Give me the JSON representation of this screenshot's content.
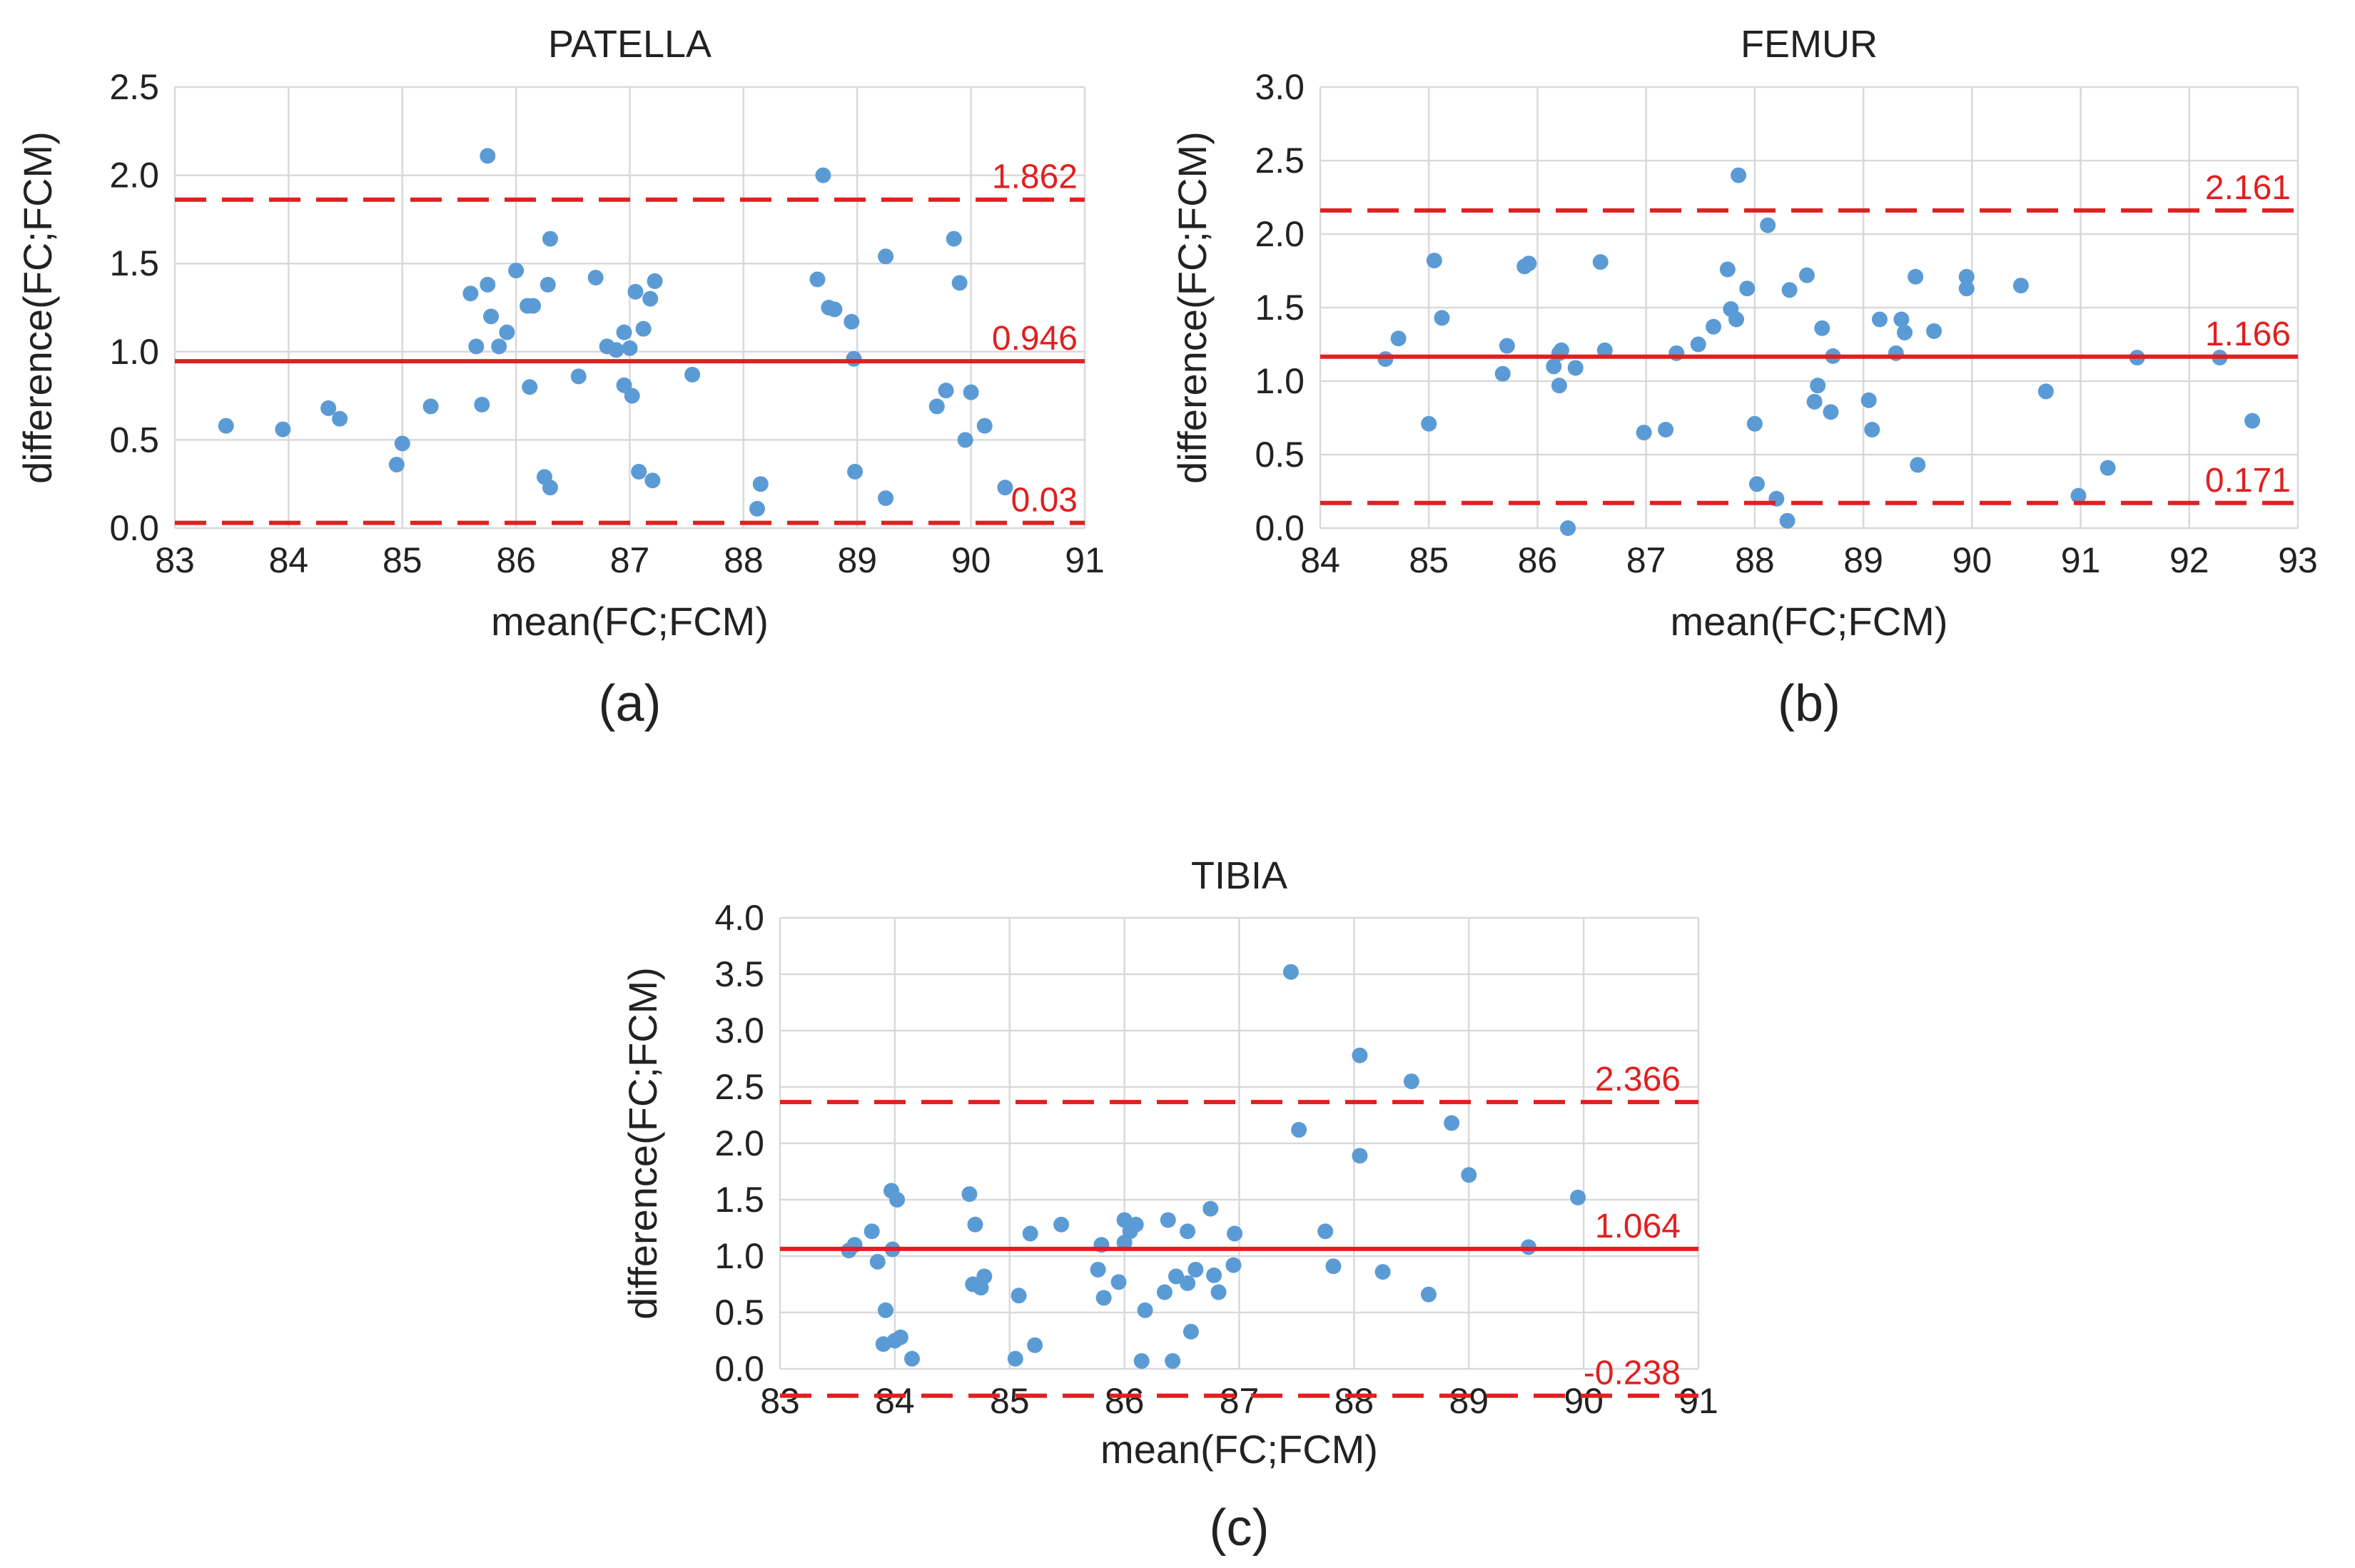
{
  "chart_data": [
    {
      "type": "scatter",
      "title": "PATELLA",
      "panel_label": "(a)",
      "xlabel": "mean(FC;FCM)",
      "ylabel": "difference(FC;FCM)",
      "xlim": [
        83,
        91
      ],
      "ylim": [
        0,
        2.5
      ],
      "xticks": [
        "83",
        "84",
        "85",
        "86",
        "87",
        "88",
        "89",
        "90",
        "91"
      ],
      "yticks": [
        "0.0",
        "0.5",
        "1.0",
        "1.5",
        "2.0",
        "2.5"
      ],
      "grid": true,
      "reference_lines": [
        {
          "value": 1.862,
          "label": "1.862",
          "style": "dashed",
          "color": "#e02020"
        },
        {
          "value": 0.946,
          "label": "0.946",
          "style": "solid",
          "color": "#e02020"
        },
        {
          "value": 0.03,
          "label": "0.03",
          "style": "dashed",
          "color": "#e02020"
        }
      ],
      "points": [
        [
          83.45,
          0.58
        ],
        [
          83.95,
          0.56
        ],
        [
          84.35,
          0.68
        ],
        [
          84.45,
          0.62
        ],
        [
          84.95,
          0.36
        ],
        [
          85.0,
          0.48
        ],
        [
          85.25,
          0.69
        ],
        [
          85.6,
          1.33
        ],
        [
          85.65,
          1.03
        ],
        [
          85.7,
          0.7
        ],
        [
          85.75,
          1.38
        ],
        [
          85.75,
          2.11
        ],
        [
          85.78,
          1.2
        ],
        [
          85.85,
          1.03
        ],
        [
          85.92,
          1.11
        ],
        [
          86.0,
          1.46
        ],
        [
          86.1,
          1.26
        ],
        [
          86.12,
          0.8
        ],
        [
          86.15,
          1.26
        ],
        [
          86.25,
          0.29
        ],
        [
          86.28,
          1.38
        ],
        [
          86.3,
          0.23
        ],
        [
          86.3,
          1.64
        ],
        [
          86.55,
          0.86
        ],
        [
          86.7,
          1.42
        ],
        [
          86.8,
          1.03
        ],
        [
          86.88,
          1.01
        ],
        [
          86.95,
          0.81
        ],
        [
          86.95,
          1.11
        ],
        [
          87.0,
          1.02
        ],
        [
          87.02,
          0.75
        ],
        [
          87.05,
          1.34
        ],
        [
          87.08,
          0.32
        ],
        [
          87.12,
          1.13
        ],
        [
          87.18,
          1.3
        ],
        [
          87.2,
          0.27
        ],
        [
          87.22,
          1.4
        ],
        [
          87.55,
          0.87
        ],
        [
          88.12,
          0.11
        ],
        [
          88.15,
          0.25
        ],
        [
          88.65,
          1.41
        ],
        [
          88.7,
          2.0
        ],
        [
          88.75,
          1.25
        ],
        [
          88.8,
          1.24
        ],
        [
          88.95,
          1.17
        ],
        [
          88.97,
          0.96
        ],
        [
          88.98,
          0.32
        ],
        [
          89.25,
          0.17
        ],
        [
          89.25,
          1.54
        ],
        [
          89.7,
          0.69
        ],
        [
          89.78,
          0.78
        ],
        [
          89.85,
          1.64
        ],
        [
          89.9,
          1.39
        ],
        [
          89.95,
          0.5
        ],
        [
          90.0,
          0.77
        ],
        [
          90.12,
          0.58
        ],
        [
          90.3,
          0.23
        ]
      ]
    },
    {
      "type": "scatter",
      "title": "FEMUR",
      "panel_label": "(b)",
      "xlabel": "mean(FC;FCM)",
      "ylabel": "difference(FC;FCM)",
      "xlim": [
        84,
        93
      ],
      "ylim": [
        0,
        3.0
      ],
      "xticks": [
        "84",
        "85",
        "86",
        "87",
        "88",
        "89",
        "90",
        "91",
        "92",
        "93"
      ],
      "yticks": [
        "0.0",
        "0.5",
        "1.0",
        "1.5",
        "2.0",
        "2.5",
        "3.0"
      ],
      "grid": true,
      "reference_lines": [
        {
          "value": 2.161,
          "label": "2.161",
          "style": "dashed",
          "color": "#e02020"
        },
        {
          "value": 1.166,
          "label": "1.166",
          "style": "solid",
          "color": "#e02020"
        },
        {
          "value": 0.171,
          "label": "0.171",
          "style": "dashed",
          "color": "#e02020"
        }
      ],
      "points": [
        [
          84.6,
          1.15
        ],
        [
          84.72,
          1.29
        ],
        [
          85.0,
          0.71
        ],
        [
          85.05,
          1.82
        ],
        [
          85.12,
          1.43
        ],
        [
          85.68,
          1.05
        ],
        [
          85.72,
          1.24
        ],
        [
          85.88,
          1.78
        ],
        [
          85.92,
          1.8
        ],
        [
          86.15,
          1.1
        ],
        [
          86.2,
          0.97
        ],
        [
          86.2,
          1.19
        ],
        [
          86.22,
          1.21
        ],
        [
          86.28,
          0.0
        ],
        [
          86.35,
          1.09
        ],
        [
          86.58,
          1.81
        ],
        [
          86.62,
          1.21
        ],
        [
          86.98,
          0.65
        ],
        [
          87.18,
          0.67
        ],
        [
          87.28,
          1.19
        ],
        [
          87.48,
          1.25
        ],
        [
          87.62,
          1.37
        ],
        [
          87.75,
          1.76
        ],
        [
          87.78,
          1.49
        ],
        [
          87.83,
          1.42
        ],
        [
          87.85,
          2.4
        ],
        [
          87.93,
          1.63
        ],
        [
          88.0,
          0.71
        ],
        [
          88.02,
          0.3
        ],
        [
          88.12,
          2.06
        ],
        [
          88.2,
          0.2
        ],
        [
          88.3,
          0.05
        ],
        [
          88.32,
          1.62
        ],
        [
          88.48,
          1.72
        ],
        [
          88.55,
          0.86
        ],
        [
          88.58,
          0.97
        ],
        [
          88.62,
          1.36
        ],
        [
          88.7,
          0.79
        ],
        [
          88.72,
          1.17
        ],
        [
          89.05,
          0.87
        ],
        [
          89.08,
          0.67
        ],
        [
          89.15,
          1.42
        ],
        [
          89.3,
          1.19
        ],
        [
          89.35,
          1.42
        ],
        [
          89.38,
          1.33
        ],
        [
          89.48,
          1.71
        ],
        [
          89.5,
          0.43
        ],
        [
          89.65,
          1.34
        ],
        [
          89.95,
          1.63
        ],
        [
          89.95,
          1.71
        ],
        [
          90.45,
          1.65
        ],
        [
          90.68,
          0.93
        ],
        [
          90.98,
          0.22
        ],
        [
          91.25,
          0.41
        ],
        [
          91.52,
          1.16
        ],
        [
          92.28,
          1.16
        ],
        [
          92.58,
          0.73
        ]
      ]
    },
    {
      "type": "scatter",
      "title": "TIBIA",
      "panel_label": "(c)",
      "xlabel": "mean(FC;FCM)",
      "ylabel": "difference(FC;FCM)",
      "xlim": [
        83,
        91
      ],
      "ylim": [
        0,
        4.0
      ],
      "xticks": [
        "83",
        "84",
        "85",
        "86",
        "87",
        "88",
        "89",
        "90",
        "91"
      ],
      "yticks": [
        "0.0",
        "0.5",
        "1.0",
        "1.5",
        "2.0",
        "2.5",
        "3.0",
        "3.5",
        "4.0"
      ],
      "grid": true,
      "reference_lines": [
        {
          "value": 2.366,
          "label": "2.366",
          "style": "dashed",
          "color": "#e02020"
        },
        {
          "value": 1.064,
          "label": "1.064",
          "style": "solid",
          "color": "#e02020"
        },
        {
          "value": -0.238,
          "label": "-0.238",
          "style": "dashed",
          "color": "#e02020"
        }
      ],
      "points": [
        [
          83.6,
          1.05
        ],
        [
          83.65,
          1.1
        ],
        [
          83.8,
          1.22
        ],
        [
          83.85,
          0.95
        ],
        [
          83.9,
          0.22
        ],
        [
          83.92,
          0.52
        ],
        [
          83.97,
          1.58
        ],
        [
          83.98,
          1.06
        ],
        [
          84.0,
          0.25
        ],
        [
          84.02,
          1.5
        ],
        [
          84.05,
          0.28
        ],
        [
          84.15,
          0.09
        ],
        [
          84.65,
          1.55
        ],
        [
          84.68,
          0.75
        ],
        [
          84.7,
          1.28
        ],
        [
          84.75,
          0.72
        ],
        [
          84.78,
          0.82
        ],
        [
          85.05,
          0.09
        ],
        [
          85.08,
          0.65
        ],
        [
          85.18,
          1.2
        ],
        [
          85.22,
          0.21
        ],
        [
          85.45,
          1.28
        ],
        [
          85.77,
          0.88
        ],
        [
          85.8,
          1.1
        ],
        [
          85.82,
          0.63
        ],
        [
          85.95,
          0.77
        ],
        [
          86.0,
          1.32
        ],
        [
          86.0,
          1.12
        ],
        [
          86.05,
          1.22
        ],
        [
          86.1,
          1.28
        ],
        [
          86.15,
          0.07
        ],
        [
          86.18,
          0.52
        ],
        [
          86.35,
          0.68
        ],
        [
          86.38,
          1.32
        ],
        [
          86.42,
          0.07
        ],
        [
          86.45,
          0.82
        ],
        [
          86.55,
          0.76
        ],
        [
          86.55,
          1.22
        ],
        [
          86.58,
          0.33
        ],
        [
          86.62,
          0.88
        ],
        [
          86.75,
          1.42
        ],
        [
          86.78,
          0.83
        ],
        [
          86.82,
          0.68
        ],
        [
          86.95,
          0.92
        ],
        [
          86.96,
          1.2
        ],
        [
          87.45,
          3.52
        ],
        [
          87.52,
          2.12
        ],
        [
          87.75,
          1.22
        ],
        [
          87.82,
          0.91
        ],
        [
          88.05,
          1.89
        ],
        [
          88.05,
          2.78
        ],
        [
          88.25,
          0.86
        ],
        [
          88.5,
          2.55
        ],
        [
          88.65,
          0.66
        ],
        [
          88.85,
          2.18
        ],
        [
          89.0,
          1.72
        ],
        [
          89.52,
          1.08
        ],
        [
          89.95,
          1.52
        ]
      ]
    }
  ]
}
